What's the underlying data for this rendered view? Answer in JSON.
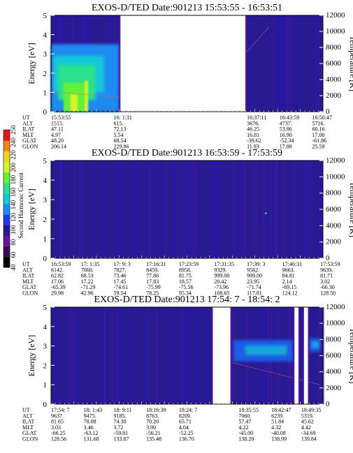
{
  "colors": {
    "background": "#2a1a90",
    "gap": "#ffffff",
    "fringe": "#5a14a0",
    "colorscale": [
      "#000000",
      "#3c0a50",
      "#6b14a0",
      "#2a1a90",
      "#1e3ce6",
      "#1e8cf0",
      "#18c8d8",
      "#2ce08c",
      "#64f03c",
      "#d2f528",
      "#f5d21e",
      "#f5821e",
      "#e6141e"
    ]
  },
  "colorbar": {
    "label": "Second Harmonic Current",
    "ticks": [
      "40",
      "60",
      "80",
      "100",
      "120",
      "140",
      "160",
      "180",
      "200",
      "220",
      "240",
      "250"
    ]
  },
  "chart_data": [
    {
      "type": "heatmap",
      "title": "EXOS-D/TED   Date:901213   15:53:55 - 16:53:51",
      "ylabel": "Energy [eV]",
      "y2label": "Temperature [K]",
      "ylim": [
        0,
        5
      ],
      "y2lim": [
        0,
        12000
      ],
      "yticks": [
        "0",
        "1",
        "2",
        "3",
        "4",
        "5"
      ],
      "y2ticks": [
        "0",
        "2000",
        "4000",
        "6000",
        "8000",
        "10000",
        "12000"
      ],
      "row_labels": [
        "UT",
        "ALT",
        "ILAT",
        "MLT",
        "GLAT",
        "GLON"
      ],
      "columns": [
        {
          "pos": 0.0,
          "vals": [
            "15:53:55",
            "1515.",
            "47.11",
            "4.97",
            "48.20",
            "206.14"
          ]
        },
        {
          "pos": 0.23,
          "vals": [
            "16: 1:31",
            "615.",
            "72.13",
            "5.54",
            "68.54",
            "229.86"
          ]
        },
        {
          "pos": 0.72,
          "vals": [
            "16:37:11",
            "3676.",
            "46.25",
            "16.81",
            "-39.62",
            "11.93"
          ]
        },
        {
          "pos": 0.84,
          "vals": [
            "16:43:59",
            "4737.",
            "53.86",
            "16.90",
            "-52.34",
            "17.88"
          ]
        },
        {
          "pos": 0.96,
          "vals": [
            "16:50:47",
            "5716.",
            "60.16",
            "17.00",
            "-61.86",
            "25.59"
          ]
        }
      ],
      "data_gaps": [
        [
          0.255,
          0.715
        ]
      ],
      "features": [
        {
          "kind": "high-intensity patch",
          "x": [
            0.0,
            0.25
          ],
          "energy_eV": [
            0.0,
            3.5
          ],
          "level": "green-yellow"
        },
        {
          "kind": "temperature trace",
          "x": [
            0.0,
            0.25
          ],
          "temperature_K": [
            2500,
            1800
          ]
        },
        {
          "kind": "temperature trace",
          "x": [
            0.72,
            0.8
          ],
          "temperature_K": [
            7500,
            10500
          ]
        }
      ]
    },
    {
      "type": "heatmap",
      "title": "EXOS-D/TED   Date:901213   16:53:59 - 17:53:59",
      "ylabel": "Energy [eV]",
      "y2label": "Temperature [K]",
      "ylim": [
        0,
        5
      ],
      "y2lim": [
        0,
        12000
      ],
      "yticks": [
        "0",
        "1",
        "2",
        "3",
        "4",
        "5"
      ],
      "y2ticks": [
        "0",
        "2000",
        "4000",
        "6000",
        "8000",
        "10000",
        "12000"
      ],
      "row_labels": [
        "UT",
        "ALT",
        "ILAT",
        "MLT",
        "GLAT",
        "GLON"
      ],
      "columns": [
        {
          "pos": 0.0,
          "vals": [
            "16:53:59",
            "6142.",
            "62.82",
            "17.06",
            "-65.39",
            "29.98"
          ]
        },
        {
          "pos": 0.11,
          "vals": [
            "17: 1:35",
            "7060.",
            "68.53",
            "17.22",
            "-71.29",
            "42.96"
          ]
        },
        {
          "pos": 0.23,
          "vals": [
            "17: 9: 3",
            "7827.",
            "73.46",
            "17.45",
            "-74.61",
            "59.54"
          ]
        },
        {
          "pos": 0.35,
          "vals": [
            "17:16:31",
            "8459.",
            "77.86",
            "17.83",
            "-75.99",
            "78.25"
          ]
        },
        {
          "pos": 0.47,
          "vals": [
            "17:23:59",
            "8958.",
            "81.75",
            "18.57",
            "-75.56",
            "95.34"
          ]
        },
        {
          "pos": 0.6,
          "vals": [
            "17:31:35",
            "9329.",
            "999.00",
            "20.42",
            "-73.96",
            "108.65"
          ]
        },
        {
          "pos": 0.72,
          "vals": [
            "17:39: 3",
            "9562.",
            "999.00",
            "23.95",
            "-71.74",
            "117.81"
          ]
        },
        {
          "pos": 0.85,
          "vals": [
            "17:46:31",
            "9663.",
            "84.81",
            "2.14",
            "-69.15",
            "124.12"
          ]
        },
        {
          "pos": 0.99,
          "vals": [
            "17:53:59",
            "9639.",
            "81.71",
            "3.02",
            "-66.30",
            "128.50"
          ]
        }
      ],
      "data_gaps": [],
      "features": [
        {
          "kind": "isolated point",
          "x": [
            0.79,
            0.79
          ],
          "energy_eV": [
            2.3,
            2.3
          ],
          "level": "cyan"
        }
      ]
    },
    {
      "type": "heatmap",
      "title": "EXOS-D/TED   Date:901213   17:54: 7 - 18:54: 2",
      "ylabel": "Energy [eV]",
      "y2label": "Temperature [K]",
      "ylim": [
        0,
        5
      ],
      "y2lim": [
        0,
        12000
      ],
      "yticks": [
        "0",
        "1",
        "2",
        "3",
        "4",
        "5"
      ],
      "y2ticks": [
        "0",
        "2000",
        "4000",
        "6000",
        "8000",
        "10000",
        "12000"
      ],
      "row_labels": [
        "UT",
        "ALT",
        "ILAT",
        "MLT",
        "GLAT",
        "GLON"
      ],
      "columns": [
        {
          "pos": 0.0,
          "vals": [
            "17:54: 7",
            "9637.",
            "81.65",
            "3.03",
            "-66.25",
            "128.56"
          ]
        },
        {
          "pos": 0.12,
          "vals": [
            "18: 1:43",
            "9475.",
            "78.08",
            "3.46",
            "-63.12",
            "131.68"
          ]
        },
        {
          "pos": 0.23,
          "vals": [
            "18: 9:11",
            "9185.",
            "74.30",
            "3.72",
            "-59.81",
            "133.87"
          ]
        },
        {
          "pos": 0.35,
          "vals": [
            "18:16:39",
            "8763.",
            "70.20",
            "3.90",
            "-56.21",
            "135.48"
          ]
        },
        {
          "pos": 0.47,
          "vals": [
            "18:24: 7",
            "8209.",
            "65.71",
            "4.04",
            "-52.25",
            "136.70"
          ]
        },
        {
          "pos": 0.69,
          "vals": [
            "18:35:55",
            "7060.",
            "57.47",
            "4.22",
            "-45.00",
            "138.20"
          ]
        },
        {
          "pos": 0.81,
          "vals": [
            "18:42:47",
            "6239.",
            "51.84",
            "4.32",
            "-40.08",
            "138.99"
          ]
        },
        {
          "pos": 0.92,
          "vals": [
            "18:49:35",
            "5319.",
            "45.62",
            "4.42",
            "-34.69",
            "139.84"
          ]
        }
      ],
      "data_gaps": [
        [
          0.595,
          0.66
        ],
        [
          0.895,
          0.91
        ],
        [
          0.93,
          0.945
        ]
      ],
      "features": [
        {
          "kind": "high-intensity band",
          "x": [
            0.67,
            0.89
          ],
          "energy_eV": [
            2.2,
            3.3
          ],
          "level": "cyan"
        },
        {
          "kind": "high-intensity band",
          "x": [
            0.95,
            0.99
          ],
          "energy_eV": [
            2.7,
            3.4
          ],
          "level": "cyan"
        },
        {
          "kind": "temperature trace",
          "x": [
            0.66,
            0.99
          ],
          "temperature_K": [
            5200,
            2400
          ]
        }
      ]
    }
  ]
}
